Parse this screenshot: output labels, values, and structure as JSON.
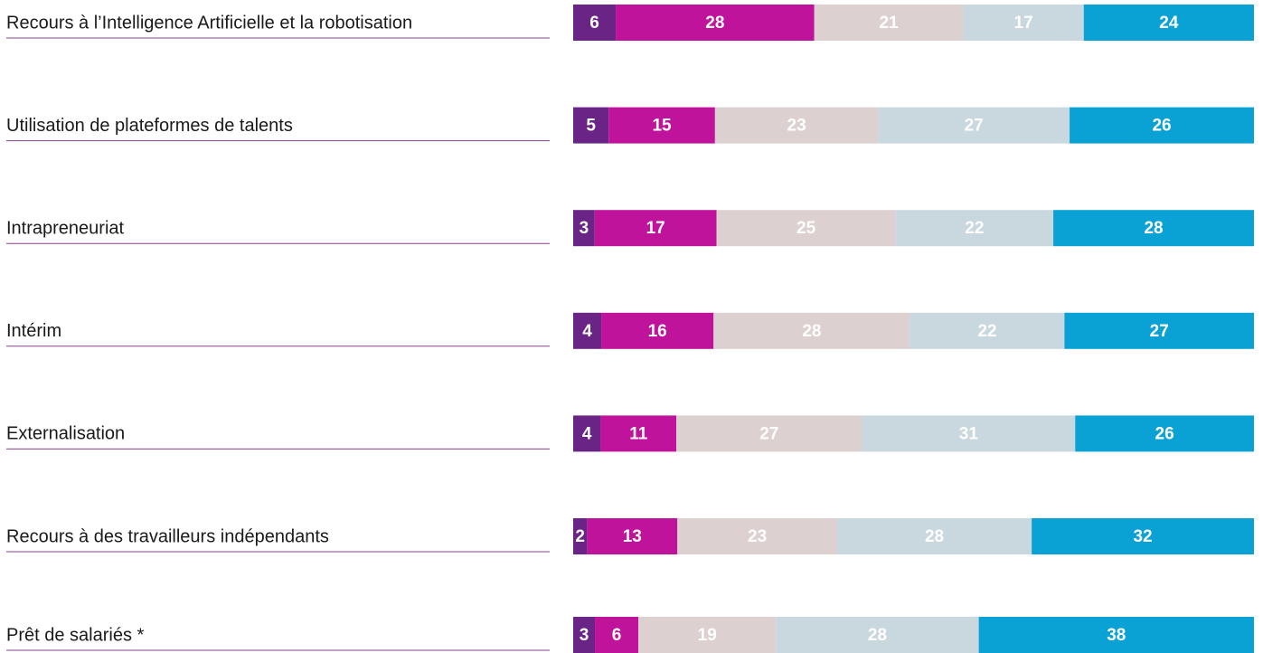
{
  "chart_data": {
    "type": "bar",
    "orientation": "horizontal",
    "stacked": true,
    "categories": [
      "Recours à l’Intelligence Artificielle et la robotisation",
      "Utilisation de plateformes de talents",
      "Intrapreneuriat",
      "Intérim",
      "Externalisation",
      "Recours à des travailleurs indépendants",
      "Prêt de salariés *"
    ],
    "series": [
      {
        "color": "#6a2485",
        "values": [
          6,
          5,
          3,
          4,
          4,
          2,
          3
        ]
      },
      {
        "color": "#c0139c",
        "values": [
          28,
          15,
          17,
          16,
          11,
          13,
          6
        ]
      },
      {
        "color": "#ddd0d0",
        "values": [
          21,
          23,
          25,
          28,
          27,
          23,
          19
        ]
      },
      {
        "color": "#c9d7df",
        "values": [
          17,
          27,
          22,
          22,
          31,
          28,
          28
        ]
      },
      {
        "color": "#0aa2d5",
        "values": [
          24,
          26,
          28,
          27,
          26,
          32,
          38
        ]
      }
    ]
  }
}
